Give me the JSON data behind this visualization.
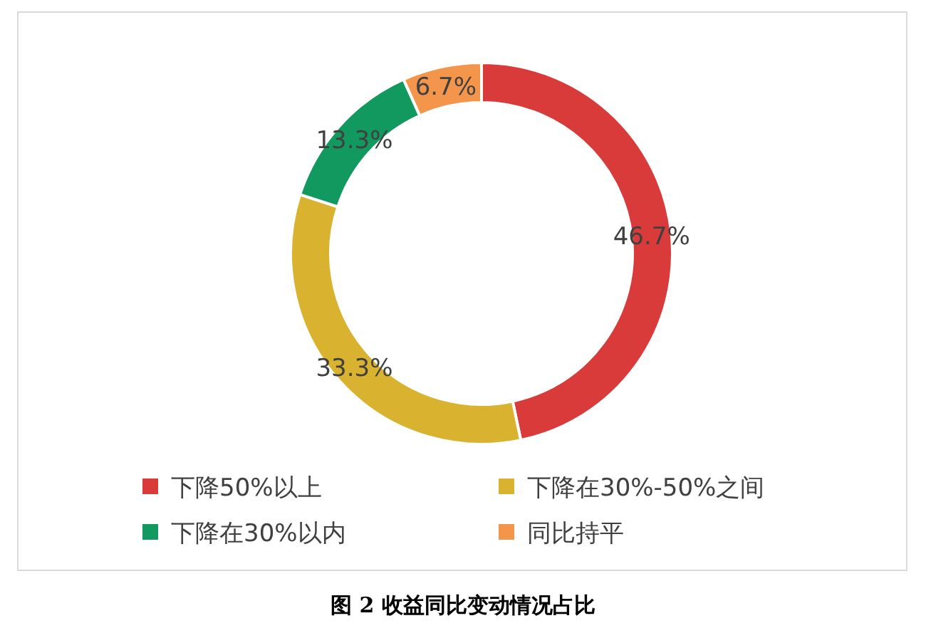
{
  "chart_data": {
    "type": "donut",
    "title": "图 2 收益同比变动情况占比",
    "categories": [
      "下降50%以上",
      "下降在30%-50%之间",
      "下降在30%以内",
      "同比持平"
    ],
    "values": [
      46.7,
      33.3,
      13.3,
      6.7
    ],
    "colors": [
      "#d93a3a",
      "#d9b230",
      "#12995f",
      "#f3954a"
    ],
    "value_labels": [
      "46.7%",
      "33.3%",
      "13.3%",
      "6.7%"
    ],
    "legend": "bottom"
  }
}
